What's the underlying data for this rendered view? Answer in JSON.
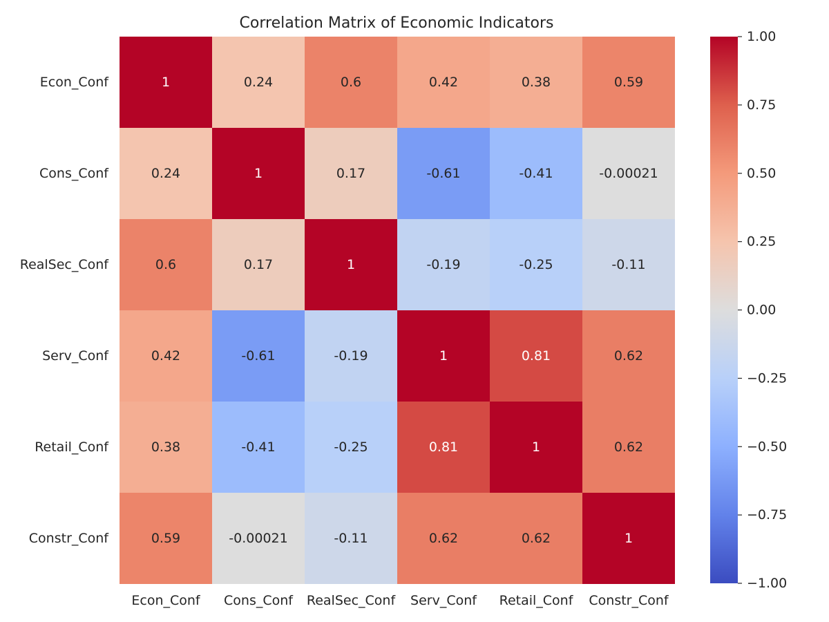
{
  "chart_data": {
    "type": "heatmap",
    "title": "Correlation Matrix of Economic Indicators",
    "xlabel": "",
    "ylabel": "",
    "rows": [
      "Econ_Conf",
      "Cons_Conf",
      "RealSec_Conf",
      "Serv_Conf",
      "Retail_Conf",
      "Constr_Conf"
    ],
    "columns": [
      "Econ_Conf",
      "Cons_Conf",
      "RealSec_Conf",
      "Serv_Conf",
      "Retail_Conf",
      "Constr_Conf"
    ],
    "values": [
      [
        1,
        0.24,
        0.6,
        0.42,
        0.38,
        0.59
      ],
      [
        0.24,
        1,
        0.17,
        -0.61,
        -0.41,
        -0.00021
      ],
      [
        0.6,
        0.17,
        1,
        -0.19,
        -0.25,
        -0.11
      ],
      [
        0.42,
        -0.61,
        -0.19,
        1,
        0.81,
        0.62
      ],
      [
        0.38,
        -0.41,
        -0.25,
        0.81,
        1,
        0.62
      ],
      [
        0.59,
        -0.00021,
        -0.11,
        0.62,
        0.62,
        1
      ]
    ],
    "annotations": [
      [
        "1",
        "0.24",
        "0.6",
        "0.42",
        "0.38",
        "0.59"
      ],
      [
        "0.24",
        "1",
        "0.17",
        "-0.61",
        "-0.41",
        "-0.00021"
      ],
      [
        "0.6",
        "0.17",
        "1",
        "-0.19",
        "-0.25",
        "-0.11"
      ],
      [
        "0.42",
        "-0.61",
        "-0.19",
        "1",
        "0.81",
        "0.62"
      ],
      [
        "0.38",
        "-0.41",
        "-0.25",
        "0.81",
        "1",
        "0.62"
      ],
      [
        "0.59",
        "-0.00021",
        "-0.11",
        "0.62",
        "0.62",
        "1"
      ]
    ],
    "colormap": "coolwarm",
    "vmin": -1,
    "vmax": 1,
    "colorbar_ticks": [
      1.0,
      0.75,
      0.5,
      0.25,
      0.0,
      -0.25,
      -0.5,
      -0.75,
      -1.0
    ],
    "colorbar_tick_labels": [
      "1.00",
      "0.75",
      "0.50",
      "0.25",
      "0.00",
      "−0.25",
      "−0.50",
      "−0.75",
      "−1.00"
    ],
    "grid": false,
    "legend": "colorbar-right"
  }
}
